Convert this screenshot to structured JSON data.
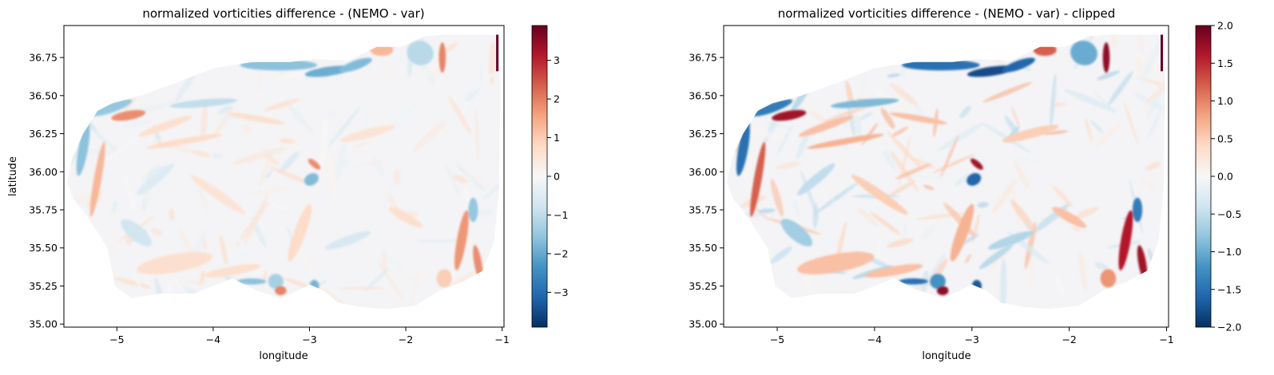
{
  "figure": {
    "background": "#ffffff",
    "colormap": "RdBu_r",
    "colormap_stops": [
      "#053061",
      "#2166ac",
      "#4393c3",
      "#92c5de",
      "#d1e5f0",
      "#f7f7f7",
      "#fddbc7",
      "#f4a582",
      "#d6604d",
      "#b2182b",
      "#67001f"
    ]
  },
  "chart_data": [
    {
      "type": "heatmap",
      "title": "normalized vorticities difference - (NEMO - var)",
      "xlabel": "longitude",
      "ylabel": "latitude",
      "xlim": [
        -5.55,
        -0.98
      ],
      "ylim": [
        34.98,
        36.96
      ],
      "x_ticks": [
        -5,
        -4,
        -3,
        -2,
        -1
      ],
      "x_tick_labels": [
        "−5",
        "−4",
        "−3",
        "−2",
        "−1"
      ],
      "y_ticks": [
        35.0,
        35.25,
        35.5,
        35.75,
        36.0,
        36.25,
        36.5,
        36.75
      ],
      "y_tick_labels": [
        "35.00",
        "35.25",
        "35.50",
        "35.75",
        "36.00",
        "36.25",
        "36.50",
        "36.75"
      ],
      "colorbar": {
        "range": [
          -3.9,
          3.9
        ],
        "ticks": [
          -3,
          -2,
          -1,
          0,
          1,
          2,
          3
        ],
        "tick_labels": [
          "−3",
          "−2",
          "−1",
          "0",
          "1",
          "2",
          "3"
        ]
      },
      "intensity": 0.55
    },
    {
      "type": "heatmap",
      "title": "normalized vorticities difference - (NEMO - var) - clipped",
      "xlabel": "longitude",
      "ylabel": "",
      "xlim": [
        -5.55,
        -0.98
      ],
      "ylim": [
        34.98,
        36.96
      ],
      "x_ticks": [
        -5,
        -4,
        -3,
        -2,
        -1
      ],
      "x_tick_labels": [
        "−5",
        "−4",
        "−3",
        "−2",
        "−1"
      ],
      "y_ticks": [
        35.0,
        35.25,
        35.5,
        35.75,
        36.0,
        36.25,
        36.5,
        36.75
      ],
      "y_tick_labels": [
        "35.00",
        "35.25",
        "35.50",
        "35.75",
        "36.00",
        "36.25",
        "36.50",
        "36.75"
      ],
      "colorbar": {
        "range": [
          -2.0,
          2.0
        ],
        "ticks": [
          -2.0,
          -1.5,
          -1.0,
          -0.5,
          0.0,
          0.5,
          1.0,
          1.5,
          2.0
        ],
        "tick_labels": [
          "−2.0",
          "−1.5",
          "−1.0",
          "−0.5",
          "0.0",
          "0.5",
          "1.0",
          "1.5",
          "2.0"
        ]
      },
      "intensity": 1.0
    }
  ]
}
